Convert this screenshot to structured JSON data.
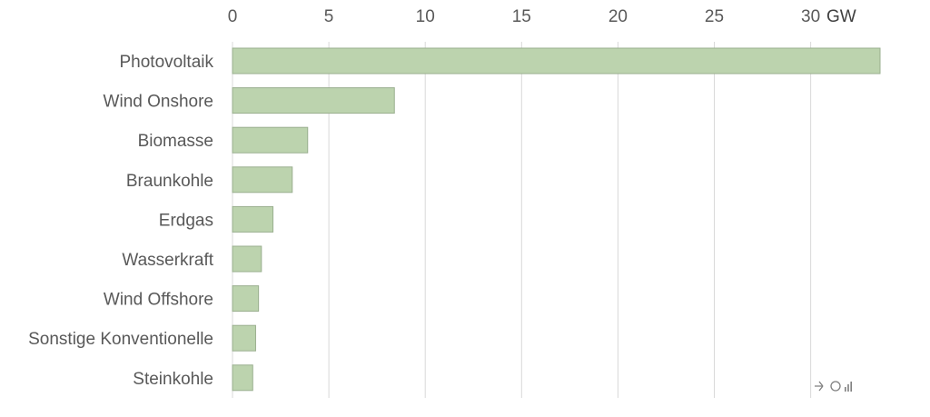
{
  "chart_data": {
    "type": "bar",
    "orientation": "horizontal",
    "unit": "GW",
    "categories": [
      "Photovoltaik",
      "Wind Onshore",
      "Biomasse",
      "Braunkohle",
      "Erdgas",
      "Wasserkraft",
      "Wind Offshore",
      "Sonstige Konventionelle",
      "Steinkohle"
    ],
    "values": [
      33.6,
      8.4,
      3.9,
      3.1,
      2.1,
      1.5,
      1.35,
      1.2,
      1.05
    ],
    "xlim": [
      0,
      33.6
    ],
    "xticks": [
      0,
      5,
      10,
      15,
      20,
      25,
      30
    ],
    "grid": true,
    "axis_position": "top",
    "bar_color": "#bcd3ae"
  },
  "logo": {
    "icon": "energy-charts-logo-icon"
  }
}
